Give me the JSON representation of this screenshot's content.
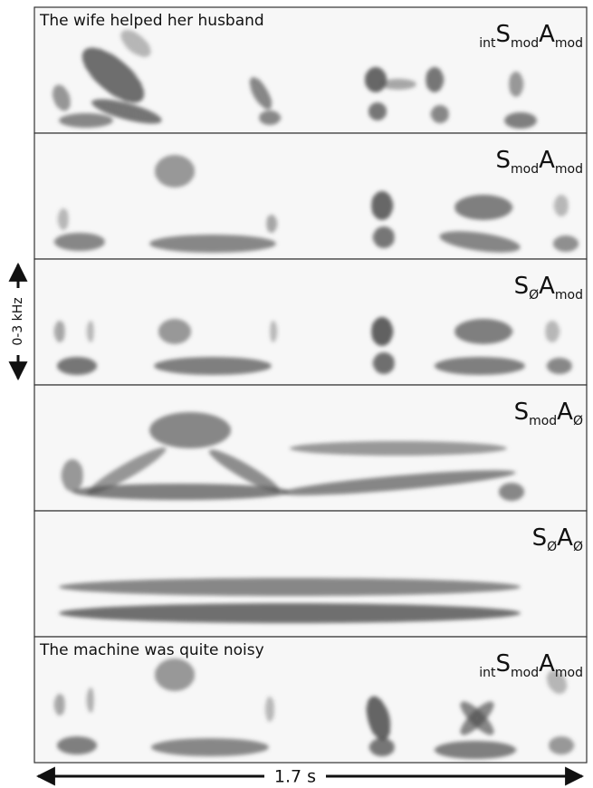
{
  "panels": [
    {
      "sentence": "The wife helped her husband",
      "label": [
        {
          "text": "int",
          "sub": true
        },
        {
          "text": "S",
          "sub": false
        },
        {
          "text": "mod",
          "sub": true
        },
        {
          "text": "A",
          "sub": false
        },
        {
          "text": "mod",
          "sub": true
        }
      ]
    },
    {
      "label": [
        {
          "text": "S",
          "sub": false
        },
        {
          "text": "mod",
          "sub": true
        },
        {
          "text": "A",
          "sub": false
        },
        {
          "text": "mod",
          "sub": true
        }
      ]
    },
    {
      "label": [
        {
          "text": "S",
          "sub": false
        },
        {
          "text": "Ø",
          "sub": true
        },
        {
          "text": "A",
          "sub": false
        },
        {
          "text": "mod",
          "sub": true
        }
      ]
    },
    {
      "label": [
        {
          "text": "S",
          "sub": false
        },
        {
          "text": "mod",
          "sub": true
        },
        {
          "text": "A",
          "sub": false
        },
        {
          "text": "Ø",
          "sub": true
        }
      ]
    },
    {
      "label": [
        {
          "text": "S",
          "sub": false
        },
        {
          "text": "Ø",
          "sub": true
        },
        {
          "text": "A",
          "sub": false
        },
        {
          "text": "Ø",
          "sub": true
        }
      ]
    },
    {
      "sentence": "The machine was quite noisy",
      "label": [
        {
          "text": "int",
          "sub": true
        },
        {
          "text": "S",
          "sub": false
        },
        {
          "text": "mod",
          "sub": true
        },
        {
          "text": "A",
          "sub": false
        },
        {
          "text": "mod",
          "sub": true
        }
      ]
    }
  ],
  "frequency_axis": "0-3 kHz",
  "time_axis": "1.7 s"
}
